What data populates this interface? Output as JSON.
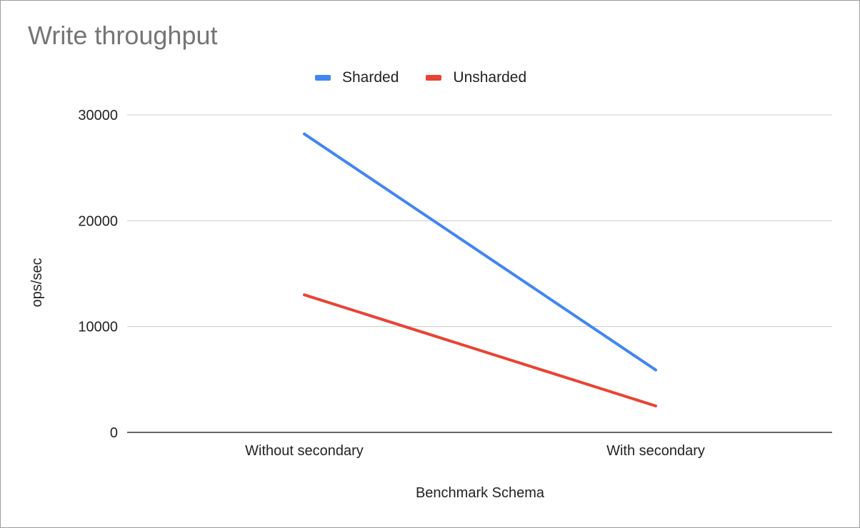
{
  "chart_data": {
    "type": "line",
    "title": "Write throughput",
    "xlabel": "Benchmark Schema",
    "ylabel": "ops/sec",
    "categories": [
      "Without secondary",
      "With secondary"
    ],
    "series": [
      {
        "name": "Sharded",
        "values": [
          28200,
          5900
        ],
        "color": "#4285f4"
      },
      {
        "name": "Unsharded",
        "values": [
          13000,
          2500
        ],
        "color": "#ea4335"
      }
    ],
    "ylim": [
      0,
      30000
    ],
    "yticks": [
      "0",
      "10000",
      "20000",
      "30000"
    ],
    "grid": true,
    "legend_position": "top-center"
  }
}
